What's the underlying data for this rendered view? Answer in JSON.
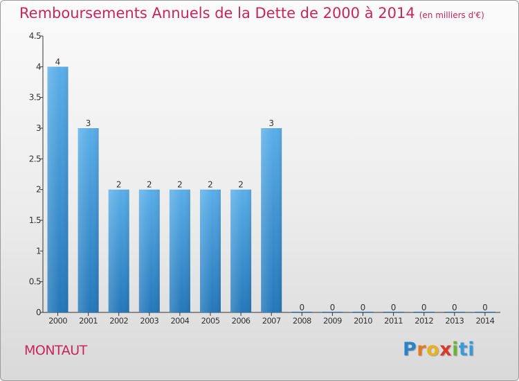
{
  "title": "Remboursements Annuels de la Dette de 2000 à 2014",
  "unit": "(en milliers d'€)",
  "commune": "MONTAUT",
  "logo": {
    "letters": [
      "P",
      "r",
      "o",
      "x",
      "i",
      "t",
      "i"
    ],
    "colors": [
      "#2a83c7",
      "#e07a1f",
      "#e8b21c",
      "#d63a2a",
      "#6ab23a",
      "#3b9ad8",
      "#3b9ad8"
    ]
  },
  "colors": {
    "bar_top": "#5aaee8",
    "bar_bottom": "#2477b9",
    "title": "#c8245e",
    "axis": "#333333"
  },
  "chart_data": {
    "type": "bar",
    "categories": [
      "2000",
      "2001",
      "2002",
      "2003",
      "2004",
      "2005",
      "2006",
      "2007",
      "2008",
      "2009",
      "2010",
      "2011",
      "2012",
      "2013",
      "2014"
    ],
    "values": [
      4,
      3,
      2,
      2,
      2,
      2,
      2,
      3,
      0,
      0,
      0,
      0,
      0,
      0,
      0
    ],
    "data_labels": [
      "4",
      "3",
      "2",
      "2",
      "2",
      "2",
      "2",
      "3",
      "0",
      "0",
      "0",
      "0",
      "0",
      "0",
      "0"
    ],
    "yticks": [
      "0",
      "0.5",
      "1",
      "1.5",
      "2",
      "2.5",
      "3",
      "3.5",
      "4",
      "4.5"
    ],
    "ylim": [
      0,
      4.5
    ],
    "grid": false,
    "legend": "none"
  }
}
